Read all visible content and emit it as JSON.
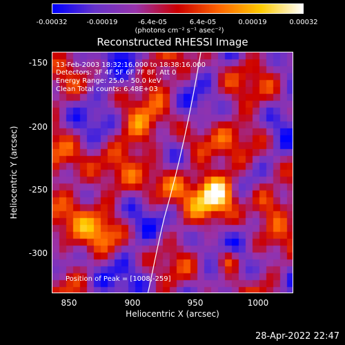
{
  "colorbar": {
    "ticks": [
      "-0.00032",
      "-0.00019",
      "-6.4e-05",
      "6.4e-05",
      "0.00019",
      "0.00032"
    ],
    "unit": "(photons cm⁻² s⁻¹ asec⁻²)"
  },
  "title": "Reconstructed RHESSI Image",
  "annotations": {
    "time_range": "13-Feb-2003 18:32:16.000 to 18:38:16.000",
    "detectors": "Detectors: 3F 4F 5F 6F 7F 8F, Att 0",
    "energy_range": "Energy Range: 25.0 - 50.0 keV",
    "clean_counts": "Clean    Total counts: 6.48E+03",
    "peak_position": "Position of Peak = [1008,-259]"
  },
  "axes": {
    "xlabel": "Heliocentric X (arcsec)",
    "ylabel": "Heliocentric Y (arcsec)",
    "xticks": [
      "850",
      "900",
      "950",
      "1000"
    ],
    "yticks": [
      "-150",
      "-200",
      "-250",
      "-300"
    ]
  },
  "timestamp": "28-Apr-2022 22:47",
  "colors": {
    "background": "#000000",
    "limb": "#ffffff",
    "colormap": [
      "#0000ff",
      "#6633cc",
      "#9933aa",
      "#cc0000",
      "#ff6600",
      "#ffcc00",
      "#ffffff"
    ]
  }
}
